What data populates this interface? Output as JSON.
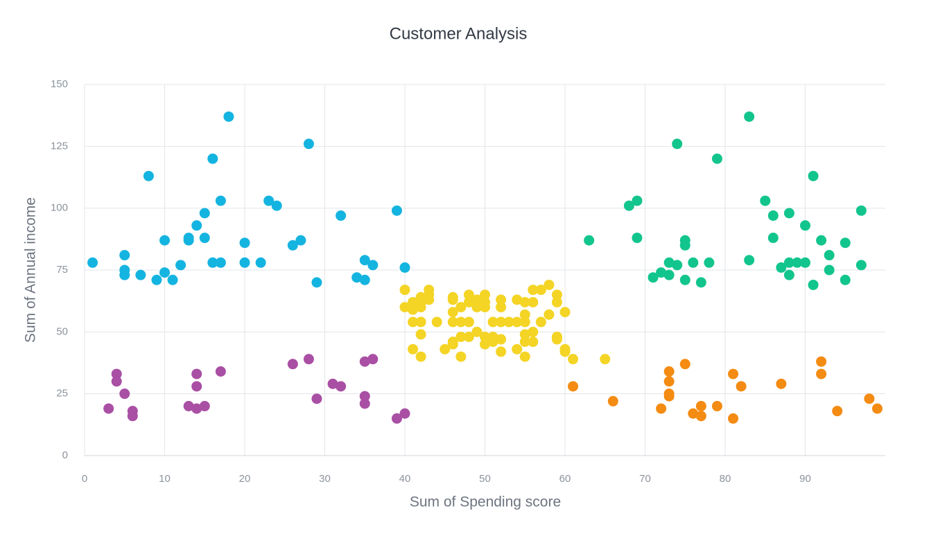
{
  "chart_data": {
    "type": "scatter",
    "title": "Customer Analysis",
    "x_label": "Sum of Spending score",
    "y_label": "Sum of Annual income",
    "xlim": [
      0,
      100
    ],
    "ylim": [
      0,
      150
    ],
    "xticks": [
      0,
      10,
      20,
      30,
      40,
      50,
      60,
      70,
      80,
      90
    ],
    "yticks": [
      0,
      25,
      50,
      75,
      100,
      125,
      150
    ],
    "grid": true,
    "series": [
      {
        "color": "#14b4e0",
        "x": [
          1,
          5,
          5,
          5,
          7,
          8,
          9,
          10,
          10,
          11,
          12,
          13,
          13,
          14,
          15,
          15,
          16,
          16,
          17,
          17,
          18,
          20,
          20,
          22,
          23,
          24,
          26,
          27,
          28,
          29,
          32,
          34,
          35,
          35,
          36,
          39,
          40
        ],
        "values": [
          78,
          81,
          75,
          73,
          73,
          113,
          71,
          74,
          87,
          71,
          77,
          87,
          88,
          93,
          98,
          88,
          120,
          78,
          103,
          78,
          137,
          86,
          78,
          78,
          103,
          101,
          85,
          87,
          126,
          70,
          97,
          72,
          71,
          79,
          77,
          99,
          76
        ]
      },
      {
        "color": "#a94fa4",
        "x": [
          3,
          4,
          4,
          5,
          6,
          6,
          13,
          14,
          14,
          14,
          15,
          17,
          26,
          28,
          29,
          31,
          32,
          35,
          35,
          35,
          36,
          39,
          40
        ],
        "values": [
          19,
          33,
          30,
          25,
          18,
          16,
          20,
          19,
          28,
          33,
          20,
          34,
          37,
          39,
          23,
          29,
          28,
          38,
          24,
          21,
          39,
          15,
          17
        ]
      },
      {
        "color": "#f4d425",
        "x": [
          40,
          40,
          41,
          41,
          41,
          41,
          42,
          42,
          42,
          42,
          42,
          42,
          43,
          43,
          43,
          44,
          45,
          46,
          46,
          46,
          46,
          46,
          46,
          47,
          47,
          47,
          47,
          48,
          48,
          48,
          48,
          49,
          49,
          49,
          50,
          50,
          50,
          50,
          50,
          51,
          51,
          51,
          52,
          52,
          52,
          52,
          52,
          53,
          54,
          54,
          54,
          55,
          55,
          55,
          55,
          55,
          55,
          56,
          56,
          56,
          56,
          57,
          57,
          58,
          58,
          59,
          59,
          59,
          59,
          60,
          60,
          60,
          61,
          65
        ],
        "values": [
          67,
          60,
          62,
          59,
          54,
          43,
          64,
          62,
          60,
          54,
          49,
          40,
          67,
          65,
          63,
          54,
          43,
          64,
          63,
          58,
          54,
          46,
          45,
          60,
          54,
          48,
          40,
          65,
          62,
          54,
          48,
          50,
          60,
          63,
          65,
          62,
          60,
          48,
          45,
          54,
          48,
          46,
          63,
          60,
          54,
          47,
          42,
          54,
          63,
          54,
          43,
          62,
          57,
          54,
          49,
          46,
          40,
          67,
          62,
          50,
          46,
          67,
          54,
          69,
          57,
          65,
          62,
          48,
          47,
          58,
          43,
          42,
          39,
          39
        ]
      },
      {
        "color": "#f48b12",
        "x": [
          61,
          66,
          72,
          73,
          73,
          73,
          73,
          75,
          76,
          77,
          77,
          79,
          81,
          81,
          82,
          87,
          92,
          92,
          94,
          98,
          99
        ],
        "values": [
          28,
          22,
          19,
          34,
          30,
          25,
          24,
          37,
          17,
          20,
          16,
          20,
          33,
          15,
          28,
          29,
          38,
          33,
          18,
          23,
          19
        ]
      },
      {
        "color": "#12c58c",
        "x": [
          63,
          68,
          69,
          69,
          71,
          72,
          73,
          73,
          74,
          74,
          75,
          75,
          75,
          76,
          77,
          78,
          79,
          83,
          83,
          85,
          86,
          86,
          87,
          88,
          88,
          88,
          89,
          90,
          90,
          91,
          91,
          92,
          93,
          93,
          95,
          95,
          97,
          97
        ],
        "values": [
          87,
          101,
          103,
          88,
          72,
          74,
          78,
          73,
          126,
          77,
          87,
          85,
          71,
          78,
          70,
          78,
          120,
          137,
          79,
          103,
          97,
          88,
          76,
          98,
          78,
          73,
          78,
          93,
          78,
          113,
          69,
          87,
          81,
          75,
          86,
          71,
          99,
          77
        ]
      }
    ]
  }
}
